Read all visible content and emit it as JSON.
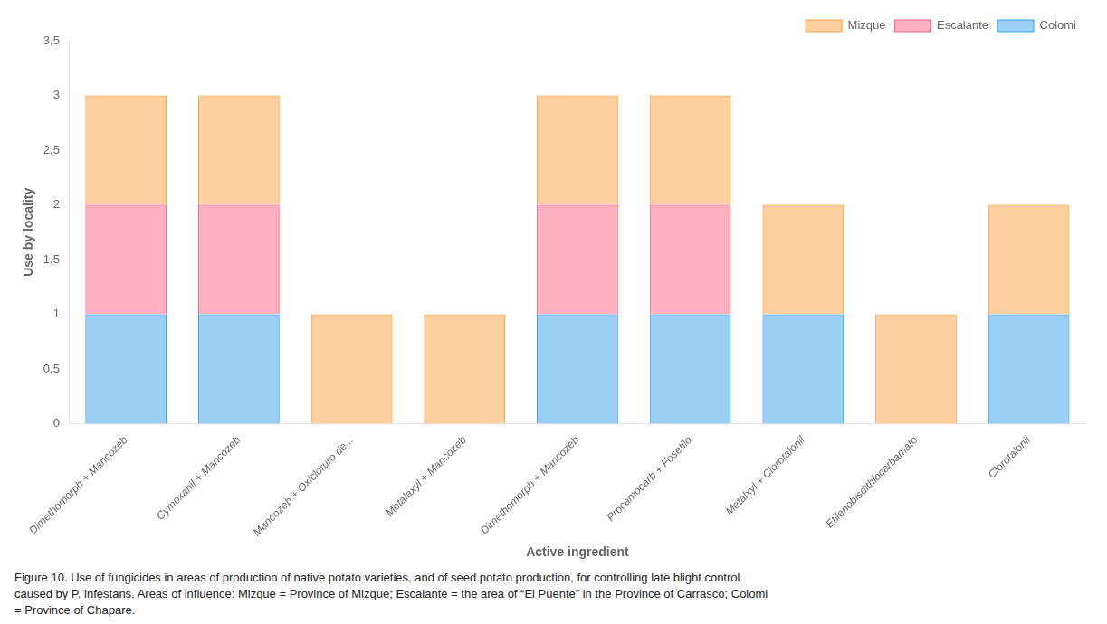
{
  "chart_data": {
    "type": "bar",
    "stacked": true,
    "categories": [
      "Dimethomorph + Mancozeb",
      "Cymoxanil + Mancozeb",
      "Mancozeb + Oxicloruro de...",
      "Metalaxyl + Mancozeb",
      "Dimethomorph + Mancozeb",
      "Procamocarb + Fosetilo",
      "Metalxyl + Clorotalonil",
      "Etilenobisdithiocarbamato",
      "Clorotalonil"
    ],
    "series": [
      {
        "name": "Colomi",
        "values": [
          1,
          1,
          0,
          0,
          1,
          1,
          1,
          0,
          1
        ]
      },
      {
        "name": "Escalante",
        "values": [
          1,
          1,
          0,
          0,
          1,
          1,
          0,
          0,
          0
        ]
      },
      {
        "name": "Mizque",
        "values": [
          1,
          1,
          1,
          1,
          1,
          1,
          1,
          1,
          1
        ]
      }
    ],
    "xlabel": "Active ingredient",
    "ylabel": "Use by locality",
    "ylim": [
      0,
      3.5
    ],
    "yticks": [
      0,
      {
        "value": 0.5,
        "label": "0,5"
      },
      1,
      {
        "value": 1.5,
        "label": "1,5"
      },
      2,
      {
        "value": 2.5,
        "label": "2,5"
      },
      3,
      {
        "value": 3.5,
        "label": "3,5"
      }
    ],
    "grid": false,
    "legend": "upper right",
    "caption": [
      "Figure 10. Use of fungicides in areas of production of native potato varieties, and of seed potato production, for controlling late blight control",
      "caused by P. infestans. Areas of influence: Mizque = Province of Mizque; Escalante = the area of “El Puente” in the Province of Carrasco; Colomi",
      "= Province of Chapare."
    ]
  }
}
